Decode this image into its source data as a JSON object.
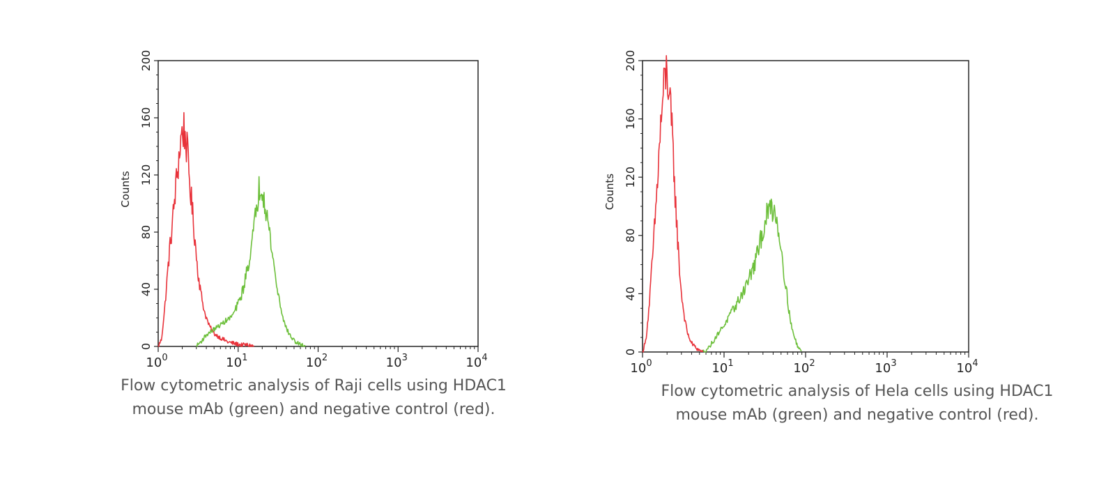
{
  "colors": {
    "control": "#e8323a",
    "hdac1": "#6cbf3a",
    "axis": "#222222",
    "caption": "#555555"
  },
  "chart_data": [
    {
      "type": "line",
      "title": "",
      "xlabel": "",
      "ylabel": "Counts",
      "xscale": "log",
      "xlim": [
        1,
        10000
      ],
      "ylim": [
        0,
        200
      ],
      "grid": false,
      "yticks": [
        0,
        40,
        80,
        120,
        160,
        200
      ],
      "ytick_labels": [
        "0",
        "40",
        "80",
        "120",
        "160",
        "200"
      ],
      "xticks": [
        1,
        10,
        100,
        1000,
        10000
      ],
      "xtick_labels": [
        {
          "base": "10",
          "exp": "0"
        },
        {
          "base": "10",
          "exp": "1"
        },
        {
          "base": "10",
          "exp": "2"
        },
        {
          "base": "10",
          "exp": "3"
        },
        {
          "base": "10",
          "exp": "4"
        }
      ],
      "series": [
        {
          "name": "negative control (red)",
          "color": "#e8323a",
          "x": [
            1.0,
            1.1,
            1.2,
            1.35,
            1.5,
            1.65,
            1.8,
            1.95,
            2.1,
            2.25,
            2.4,
            2.6,
            2.85,
            3.1,
            3.4,
            3.8,
            4.3,
            5.0,
            6.0,
            7.5,
            9.0,
            11,
            13,
            16
          ],
          "values": [
            0,
            5,
            25,
            60,
            85,
            110,
            130,
            148,
            152,
            142,
            125,
            102,
            78,
            55,
            38,
            24,
            15,
            9,
            6,
            3,
            2,
            1,
            1,
            0
          ]
        },
        {
          "name": "HDAC1 mouse mAb (green)",
          "color": "#6cbf3a",
          "x": [
            3.0,
            3.5,
            4.0,
            5.0,
            6.0,
            7.0,
            8.0,
            9.0,
            10,
            11,
            12,
            13,
            14.5,
            16,
            17,
            18,
            19,
            20,
            22,
            24,
            27,
            30,
            34,
            38,
            43,
            50,
            60,
            70
          ],
          "values": [
            0,
            4,
            8,
            12,
            15,
            18,
            20,
            24,
            30,
            36,
            44,
            54,
            68,
            84,
            98,
            108,
            114,
            112,
            100,
            84,
            64,
            44,
            28,
            16,
            9,
            4,
            1,
            0
          ]
        }
      ]
    },
    {
      "type": "line",
      "title": "",
      "xlabel": "",
      "ylabel": "Counts",
      "xscale": "log",
      "xlim": [
        1,
        10000
      ],
      "ylim": [
        0,
        200
      ],
      "grid": false,
      "yticks": [
        0,
        40,
        80,
        120,
        160,
        200
      ],
      "ytick_labels": [
        "0",
        "40",
        "80",
        "120",
        "160",
        "200"
      ],
      "xticks": [
        1,
        10,
        100,
        1000,
        10000
      ],
      "xtick_labels": [
        {
          "base": "10",
          "exp": "0"
        },
        {
          "base": "10",
          "exp": "1"
        },
        {
          "base": "10",
          "exp": "2"
        },
        {
          "base": "10",
          "exp": "3"
        },
        {
          "base": "10",
          "exp": "4"
        }
      ],
      "series": [
        {
          "name": "negative control (red)",
          "color": "#e8323a",
          "x": [
            1.0,
            1.1,
            1.2,
            1.35,
            1.5,
            1.65,
            1.8,
            1.95,
            2.05,
            2.15,
            2.3,
            2.45,
            2.6,
            2.8,
            3.0,
            3.3,
            3.6,
            4.0,
            4.5,
            5.0,
            5.5
          ],
          "values": [
            0,
            8,
            30,
            70,
            110,
            150,
            178,
            192,
            188,
            172,
            150,
            122,
            92,
            62,
            40,
            22,
            12,
            6,
            3,
            1,
            0
          ]
        },
        {
          "name": "HDAC1 mouse mAb (green)",
          "color": "#6cbf3a",
          "x": [
            5.5,
            6.5,
            7.5,
            9.0,
            10.5,
            12,
            14,
            16,
            18,
            20,
            23,
            26,
            29,
            32,
            35,
            38,
            41,
            44,
            48,
            52,
            57,
            62,
            68,
            75,
            82,
            90
          ],
          "values": [
            0,
            3,
            8,
            15,
            20,
            26,
            32,
            38,
            44,
            50,
            58,
            68,
            80,
            90,
            96,
            100,
            98,
            92,
            80,
            64,
            46,
            30,
            16,
            8,
            3,
            0
          ]
        }
      ]
    }
  ],
  "captions": [
    {
      "line1": "Flow cytometric analysis of Raji cells using HDAC1",
      "line2": "mouse mAb (green) and negative control (red)."
    },
    {
      "line1": "Flow cytometric analysis of Hela cells using HDAC1",
      "line2": "mouse mAb (green) and negative control (red)."
    }
  ]
}
